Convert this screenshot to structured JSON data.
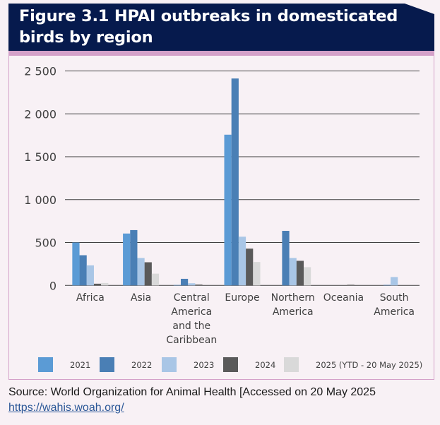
{
  "figure": {
    "title_line1": "Figure 3.1 HPAI outbreaks in domesticated",
    "title_line2": "birds by region"
  },
  "source": {
    "text": "Source: World Organization for Animal Health [Accessed on 20 May 2025",
    "link": "https://wahis.woah.org/"
  },
  "colors": {
    "header_bg": "#061a4d",
    "accent_band": "#d4a1c9",
    "gridline": "#404040"
  },
  "chart_data": {
    "type": "bar",
    "title": "Figure 3.1 HPAI outbreaks in domesticated birds by region",
    "xlabel": "",
    "ylabel": "",
    "ylim": [
      0,
      2500
    ],
    "yticks": [
      0,
      500,
      1000,
      1500,
      2000,
      2500
    ],
    "ytick_labels": [
      "0",
      "500",
      "1 000",
      "1 500",
      "2 000",
      "2 500"
    ],
    "grid": true,
    "legend_position": "bottom",
    "categories": [
      [
        "Africa"
      ],
      [
        "Asia"
      ],
      [
        "Central",
        "America",
        "and the",
        "Caribbean"
      ],
      [
        "Europe"
      ],
      [
        "Northern",
        "America"
      ],
      [
        "Oceania"
      ],
      [
        "South",
        "America"
      ]
    ],
    "series": [
      {
        "name": "2021",
        "color": "#5b9bd5",
        "values": [
          500,
          605,
          5,
          1757,
          0,
          0,
          0
        ]
      },
      {
        "name": "2022",
        "color": "#4a7fb5",
        "values": [
          352,
          645,
          77,
          2412,
          636,
          0,
          6
        ]
      },
      {
        "name": "2023",
        "color": "#a9c6e6",
        "values": [
          234,
          320,
          25,
          568,
          320,
          0,
          98
        ]
      },
      {
        "name": "2024",
        "color": "#5a5a5a",
        "values": [
          20,
          270,
          10,
          429,
          287,
          8,
          0
        ]
      },
      {
        "name": "2025 (YTD - 20 May 2025)",
        "color": "#d9d9d9",
        "values": [
          28,
          137,
          0,
          273,
          213,
          0,
          0
        ]
      }
    ]
  }
}
